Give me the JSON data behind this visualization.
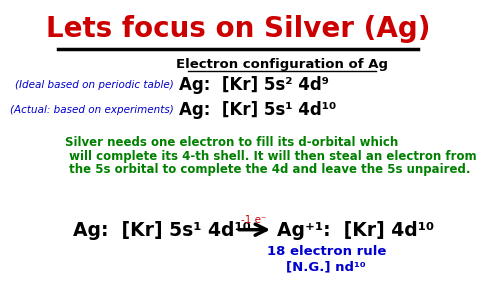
{
  "title": "Lets focus on Silver (Ag)",
  "title_color": "#cc0000",
  "bg_color": "#ffffff",
  "ec_header": "Electron configuration of Ag",
  "ideal_label": "(Ideal based on periodic table)",
  "ideal_formula": "Ag:  [Kr] 5s² 4d⁹",
  "actual_label": "(Actual: based on experiments)",
  "actual_formula": "Ag:  [Kr] 5s¹ 4d¹⁰",
  "green_text_line1": "Silver needs one electron to fill its d-orbital which",
  "green_text_line2": " will complete its 4-th shell. It will then steal an electron from",
  "green_text_line3": " the 5s orbital to complete the 4d and leave the 5s unpaired.",
  "green_color": "#008000",
  "blue_color": "#0000cc",
  "red_color": "#cc0000",
  "black_color": "#000000",
  "ag_left": "Ag:  [Kr] 5s¹ 4d¹⁰",
  "minus1e": "-1 e⁻",
  "ag_right": "Ag⁺¹:  [Kr] 4d¹⁰",
  "rule_line1": "18 electron rule",
  "rule_line2": "[N.G.] nd¹⁰"
}
